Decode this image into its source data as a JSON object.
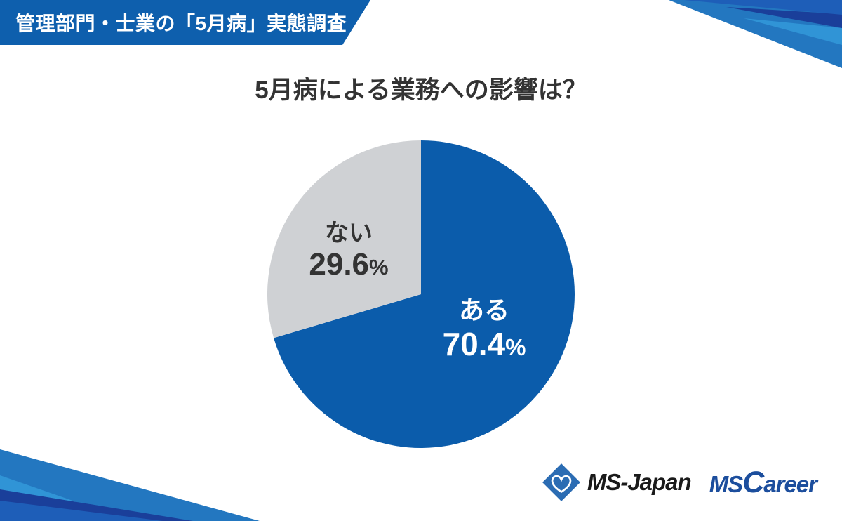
{
  "badge": {
    "text": "管理部門・士業の「5月病」実態調査"
  },
  "title": "5月病による業務への影響は？",
  "chart_data": {
    "type": "pie",
    "title": "5月病による業務への影響は？",
    "unit": "%",
    "start_angle_deg": 0,
    "direction": "clockwise",
    "legend": "none",
    "slices": [
      {
        "label": "ある",
        "value": 70.4,
        "value_label": "70.4",
        "color": "#0B5CAB",
        "text_color": "#FFFFFF"
      },
      {
        "label": "ない",
        "value": 29.6,
        "value_label": "29.6",
        "color": "#CFD1D4",
        "text_color": "#333333"
      }
    ],
    "percent_sign": "%"
  },
  "logos": {
    "ms_japan": {
      "text": "MS-Japan"
    },
    "ms_career": {
      "part1": "MS",
      "part2": "C",
      "part3": "areer"
    }
  },
  "colors": {
    "badge_bg": "#0E5FAD",
    "pie_blue": "#0B5CAB",
    "pie_gray": "#CFD1D4",
    "title_text": "#333333",
    "decor_royal": "#1E5EB8",
    "decor_navy": "#1A3F9A",
    "decor_light": "#3094D6",
    "decor_medium": "#2377C0",
    "diamond_blue": "#2B6CB3",
    "heart_stroke": "#FFFFFF",
    "ms_japan_text": "#1A1A1A",
    "ms_career_text": "#1C4E9D"
  }
}
